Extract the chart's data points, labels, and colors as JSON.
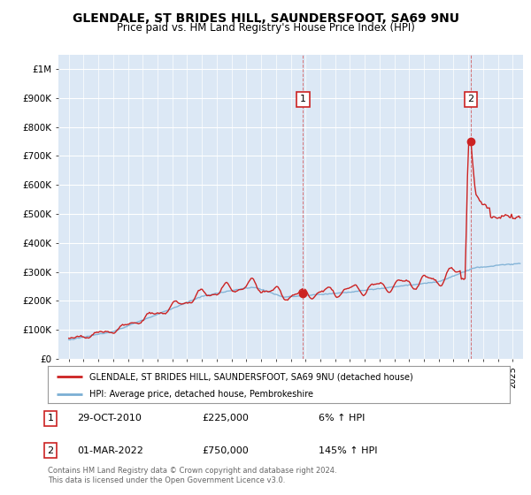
{
  "title1": "GLENDALE, ST BRIDES HILL, SAUNDERSFOOT, SA69 9NU",
  "title2": "Price paid vs. HM Land Registry's House Price Index (HPI)",
  "legend_line1": "GLENDALE, ST BRIDES HILL, SAUNDERSFOOT, SA69 9NU (detached house)",
  "legend_line2": "HPI: Average price, detached house, Pembrokeshire",
  "annotation1_date": "29-OCT-2010",
  "annotation1_price": "£225,000",
  "annotation1_hpi": "6% ↑ HPI",
  "annotation2_date": "01-MAR-2022",
  "annotation2_price": "£750,000",
  "annotation2_hpi": "145% ↑ HPI",
  "footer": "Contains HM Land Registry data © Crown copyright and database right 2024.\nThis data is licensed under the Open Government Licence v3.0.",
  "hpi_color": "#7bafd4",
  "price_color": "#cc2222",
  "annotation_box_color": "#cc2222",
  "background_color": "#dce8f5",
  "ylim_max": 1050000,
  "yticks": [
    0,
    100000,
    200000,
    300000,
    400000,
    500000,
    600000,
    700000,
    800000,
    900000,
    1000000
  ],
  "ytick_labels": [
    "£0",
    "£100K",
    "£200K",
    "£300K",
    "£400K",
    "£500K",
    "£600K",
    "£700K",
    "£800K",
    "£900K",
    "£1M"
  ],
  "ann1_x": 2010.83,
  "ann1_y": 225000,
  "ann2_x": 2022.17,
  "ann2_y": 750000,
  "xmin": 1994.3,
  "xmax": 2025.7
}
